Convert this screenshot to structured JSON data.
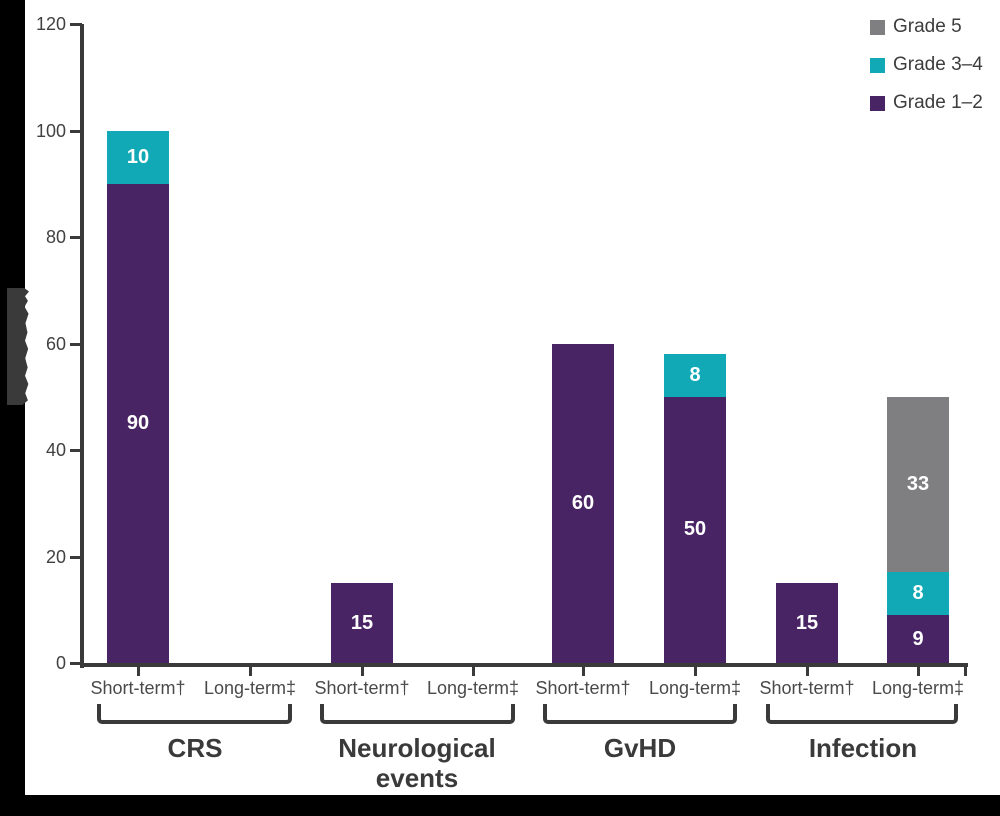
{
  "colors": {
    "background": "#ffffff",
    "frame": "#000000",
    "axis": "#3a3a3a",
    "tick_text": "#414141",
    "category_text": "#4a4a4a",
    "group_text": "#3a3a3a",
    "legend_text": "#3d3d3d",
    "value_text": "#ffffff"
  },
  "grade_colors": {
    "Grade 1-2": "#492465",
    "Grade 3-4": "#10a9b5",
    "Grade 5": "#7f7f82"
  },
  "legend": [
    {
      "label": "Grade 5",
      "grade": "Grade 5"
    },
    {
      "label": "Grade 3–4",
      "grade": "Grade 3-4"
    },
    {
      "label": "Grade 1–2",
      "grade": "Grade 1-2"
    }
  ],
  "chart_data": {
    "type": "bar",
    "stacked": true,
    "title": "",
    "xlabel": "",
    "ylabel": "",
    "ylim": [
      0,
      120
    ],
    "yticks": [
      0,
      20,
      40,
      60,
      80,
      100,
      120
    ],
    "grid": false,
    "legend_position": "top-right",
    "legend_entries": [
      "Grade 5",
      "Grade 3–4",
      "Grade 1–2"
    ],
    "groups": [
      {
        "label": "CRS",
        "bars": [
          {
            "tick": "Short-term†",
            "total": 100,
            "segments": [
              {
                "grade": "Grade 1-2",
                "value": 90
              },
              {
                "grade": "Grade 3-4",
                "value": 10
              }
            ]
          },
          {
            "tick": "Long-term‡",
            "total": 0,
            "segments": []
          }
        ]
      },
      {
        "label": "Neurological events",
        "bars": [
          {
            "tick": "Short-term†",
            "total": 15,
            "segments": [
              {
                "grade": "Grade 1-2",
                "value": 15
              }
            ]
          },
          {
            "tick": "Long-term‡",
            "total": 0,
            "segments": []
          }
        ]
      },
      {
        "label": "GvHD",
        "bars": [
          {
            "tick": "Short-term†",
            "total": 60,
            "segments": [
              {
                "grade": "Grade 1-2",
                "value": 60
              }
            ]
          },
          {
            "tick": "Long-term‡",
            "total": 58,
            "segments": [
              {
                "grade": "Grade 1-2",
                "value": 50
              },
              {
                "grade": "Grade 3-4",
                "value": 8
              }
            ]
          }
        ]
      },
      {
        "label": "Infection",
        "bars": [
          {
            "tick": "Short-term†",
            "total": 15,
            "segments": [
              {
                "grade": "Grade 1-2",
                "value": 15
              }
            ]
          },
          {
            "tick": "Long-term‡",
            "total": 50,
            "segments": [
              {
                "grade": "Grade 1-2",
                "value": 9
              },
              {
                "grade": "Grade 3-4",
                "value": 8
              },
              {
                "grade": "Grade 5",
                "value": 33
              }
            ]
          }
        ]
      }
    ]
  }
}
